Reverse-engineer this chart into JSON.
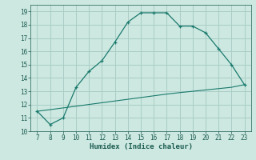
{
  "upper_x": [
    7,
    8,
    9,
    10,
    11,
    12,
    13,
    14,
    15,
    16,
    17,
    18,
    19,
    20,
    21,
    22,
    23
  ],
  "upper_y": [
    11.5,
    10.5,
    11.0,
    13.3,
    14.5,
    15.3,
    16.7,
    18.2,
    18.9,
    18.9,
    18.9,
    17.9,
    17.9,
    17.4,
    16.2,
    15.0,
    13.5
  ],
  "lower_x": [
    7,
    8,
    9,
    10,
    11,
    12,
    13,
    14,
    15,
    16,
    17,
    18,
    19,
    20,
    21,
    22,
    23
  ],
  "lower_y": [
    11.5,
    11.62,
    11.75,
    11.88,
    12.01,
    12.14,
    12.27,
    12.4,
    12.53,
    12.66,
    12.79,
    12.9,
    13.0,
    13.1,
    13.2,
    13.3,
    13.5
  ],
  "line_color": "#1a7a6e",
  "bg_color": "#cce8e0",
  "grid_color": "#aacec6",
  "xlabel": "Humidex (Indice chaleur)",
  "xlim": [
    6.5,
    23.5
  ],
  "ylim": [
    10,
    19.5
  ],
  "yticks": [
    10,
    11,
    12,
    13,
    14,
    15,
    16,
    17,
    18,
    19
  ],
  "xticks": [
    7,
    8,
    9,
    10,
    11,
    12,
    13,
    14,
    15,
    16,
    17,
    18,
    19,
    20,
    21,
    22,
    23
  ],
  "tick_color": "#1a5a50",
  "label_fontsize": 5.5,
  "xlabel_fontsize": 6.5
}
